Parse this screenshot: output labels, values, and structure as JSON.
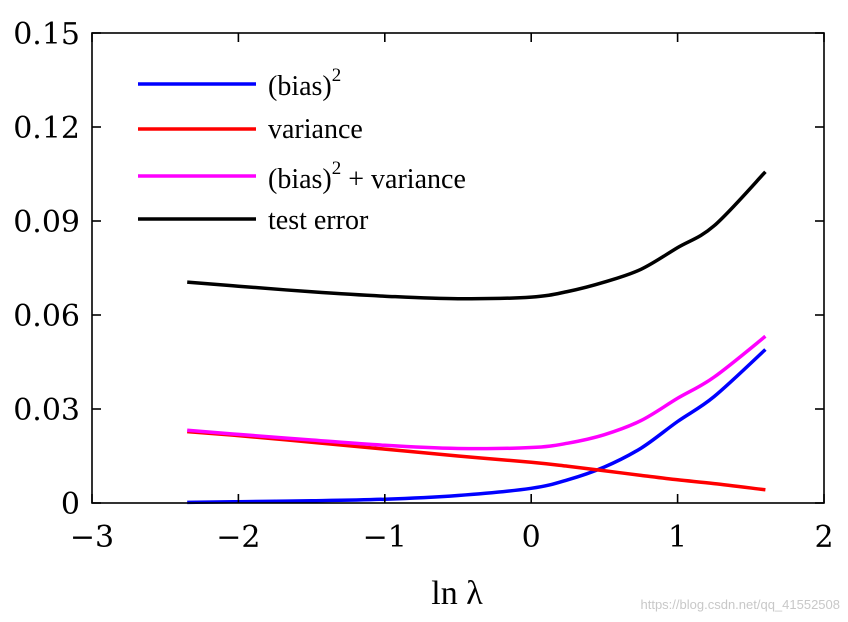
{
  "chart_data": {
    "type": "line",
    "xlabel": "ln λ",
    "ylabel": "",
    "xlim": [
      -3,
      2
    ],
    "ylim": [
      0,
      0.15
    ],
    "xticks": [
      "−3",
      "−2",
      "−1",
      "0",
      "1",
      "2"
    ],
    "yticks": [
      "0",
      "0.03",
      "0.06",
      "0.09",
      "0.12",
      "0.15"
    ],
    "x": [
      -2.35,
      -2.0,
      -1.5,
      -1.0,
      -0.5,
      0.0,
      0.25,
      0.5,
      0.75,
      1.0,
      1.25,
      1.6
    ],
    "series": [
      {
        "name": "(bias)",
        "sup": "2",
        "color": "#0000ff",
        "values": [
          0.0002,
          0.0004,
          0.0007,
          0.0012,
          0.0024,
          0.0047,
          0.0074,
          0.0115,
          0.0175,
          0.026,
          0.034,
          0.049
        ]
      },
      {
        "name": "variance",
        "sup": "",
        "color": "#ff0000",
        "values": [
          0.0228,
          0.0215,
          0.0194,
          0.0172,
          0.015,
          0.013,
          0.0117,
          0.0103,
          0.0088,
          0.0074,
          0.0062,
          0.0042
        ]
      },
      {
        "name": "(bias)",
        "sup": "2",
        "suffix": " + variance",
        "color": "#ff00ff",
        "values": [
          0.0232,
          0.0219,
          0.0201,
          0.0184,
          0.0174,
          0.0177,
          0.0191,
          0.0218,
          0.0263,
          0.0334,
          0.0402,
          0.0532
        ]
      },
      {
        "name": "test error",
        "sup": "",
        "color": "#000000",
        "values": [
          0.0705,
          0.0692,
          0.0674,
          0.066,
          0.0652,
          0.0657,
          0.0675,
          0.0705,
          0.0746,
          0.0815,
          0.0885,
          0.1057
        ]
      }
    ],
    "legend": "top-left",
    "grid": false
  },
  "watermark": "https://blog.csdn.net/qq_41552508"
}
